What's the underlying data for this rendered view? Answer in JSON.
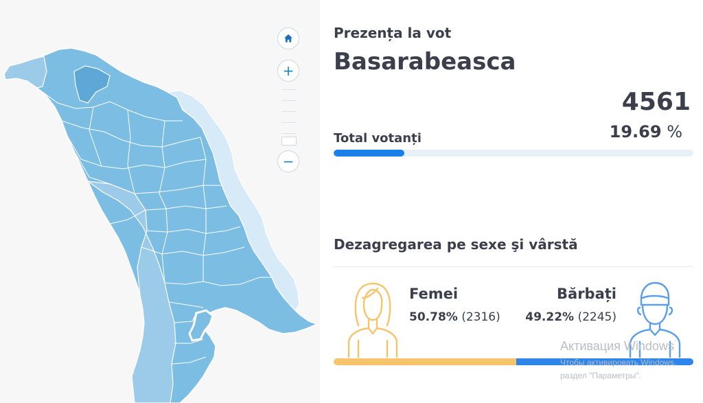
{
  "map": {
    "controls": {
      "home_icon": "home-icon",
      "zoom_in": "+",
      "zoom_out": "−"
    },
    "colors": {
      "region_fill": "#7cbde3",
      "region_fill_light": "#9ccbe9",
      "transnistria_fill": "#d6eaf7",
      "border": "#ffffff"
    }
  },
  "panel": {
    "subtitle": "Prezența la vot",
    "region_name": "Basarabeasca",
    "total": {
      "count": "4561",
      "percent": "19.69",
      "percent_unit": "%",
      "label": "Total votanți",
      "fill_fraction": 0.1969
    },
    "breakdown": {
      "title": "Dezagregarea pe sexe şi vârstă",
      "female": {
        "label": "Femei",
        "percent": "50.78%",
        "count": "(2316)",
        "fraction": 0.5078,
        "color": "#f6c46b"
      },
      "male": {
        "label": "Bărbați",
        "percent": "49.22%",
        "count": "(2245)",
        "fraction": 0.4922,
        "color": "#2f86ea"
      }
    }
  },
  "watermark": {
    "title": "Активация Windows",
    "line1": "Чтобы активировать Windows,",
    "line2": "раздел \"Параметры\"."
  }
}
